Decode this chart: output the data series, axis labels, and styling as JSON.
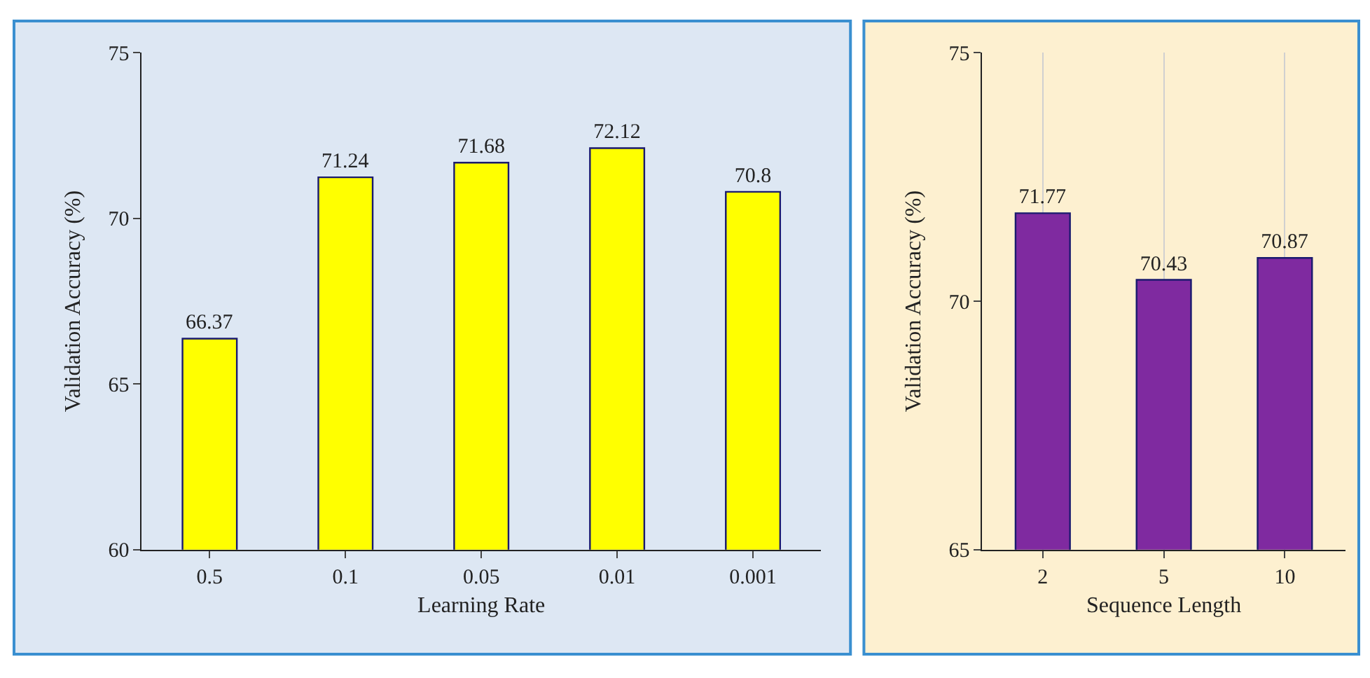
{
  "chart_data": [
    {
      "type": "bar",
      "categories": [
        "0.5",
        "0.1",
        "0.05",
        "0.01",
        "0.001"
      ],
      "values": [
        66.37,
        71.24,
        71.68,
        72.12,
        70.8
      ],
      "color": "#ffff00",
      "ylim": [
        60,
        75
      ],
      "yticks": [
        60,
        65,
        70,
        75
      ],
      "xlabel": "Learning Rate",
      "ylabel": "Validation Accuracy (%)",
      "data_labels": true,
      "grid": false
    },
    {
      "type": "bar",
      "categories": [
        "2",
        "5",
        "10"
      ],
      "values": [
        71.77,
        70.43,
        70.87
      ],
      "color": "#7f2aa0",
      "ylim": [
        65,
        75
      ],
      "yticks": [
        65,
        70,
        75
      ],
      "xlabel": "Sequence Length",
      "ylabel": "Validation Accuracy (%)",
      "data_labels": true,
      "grid": "x"
    }
  ]
}
